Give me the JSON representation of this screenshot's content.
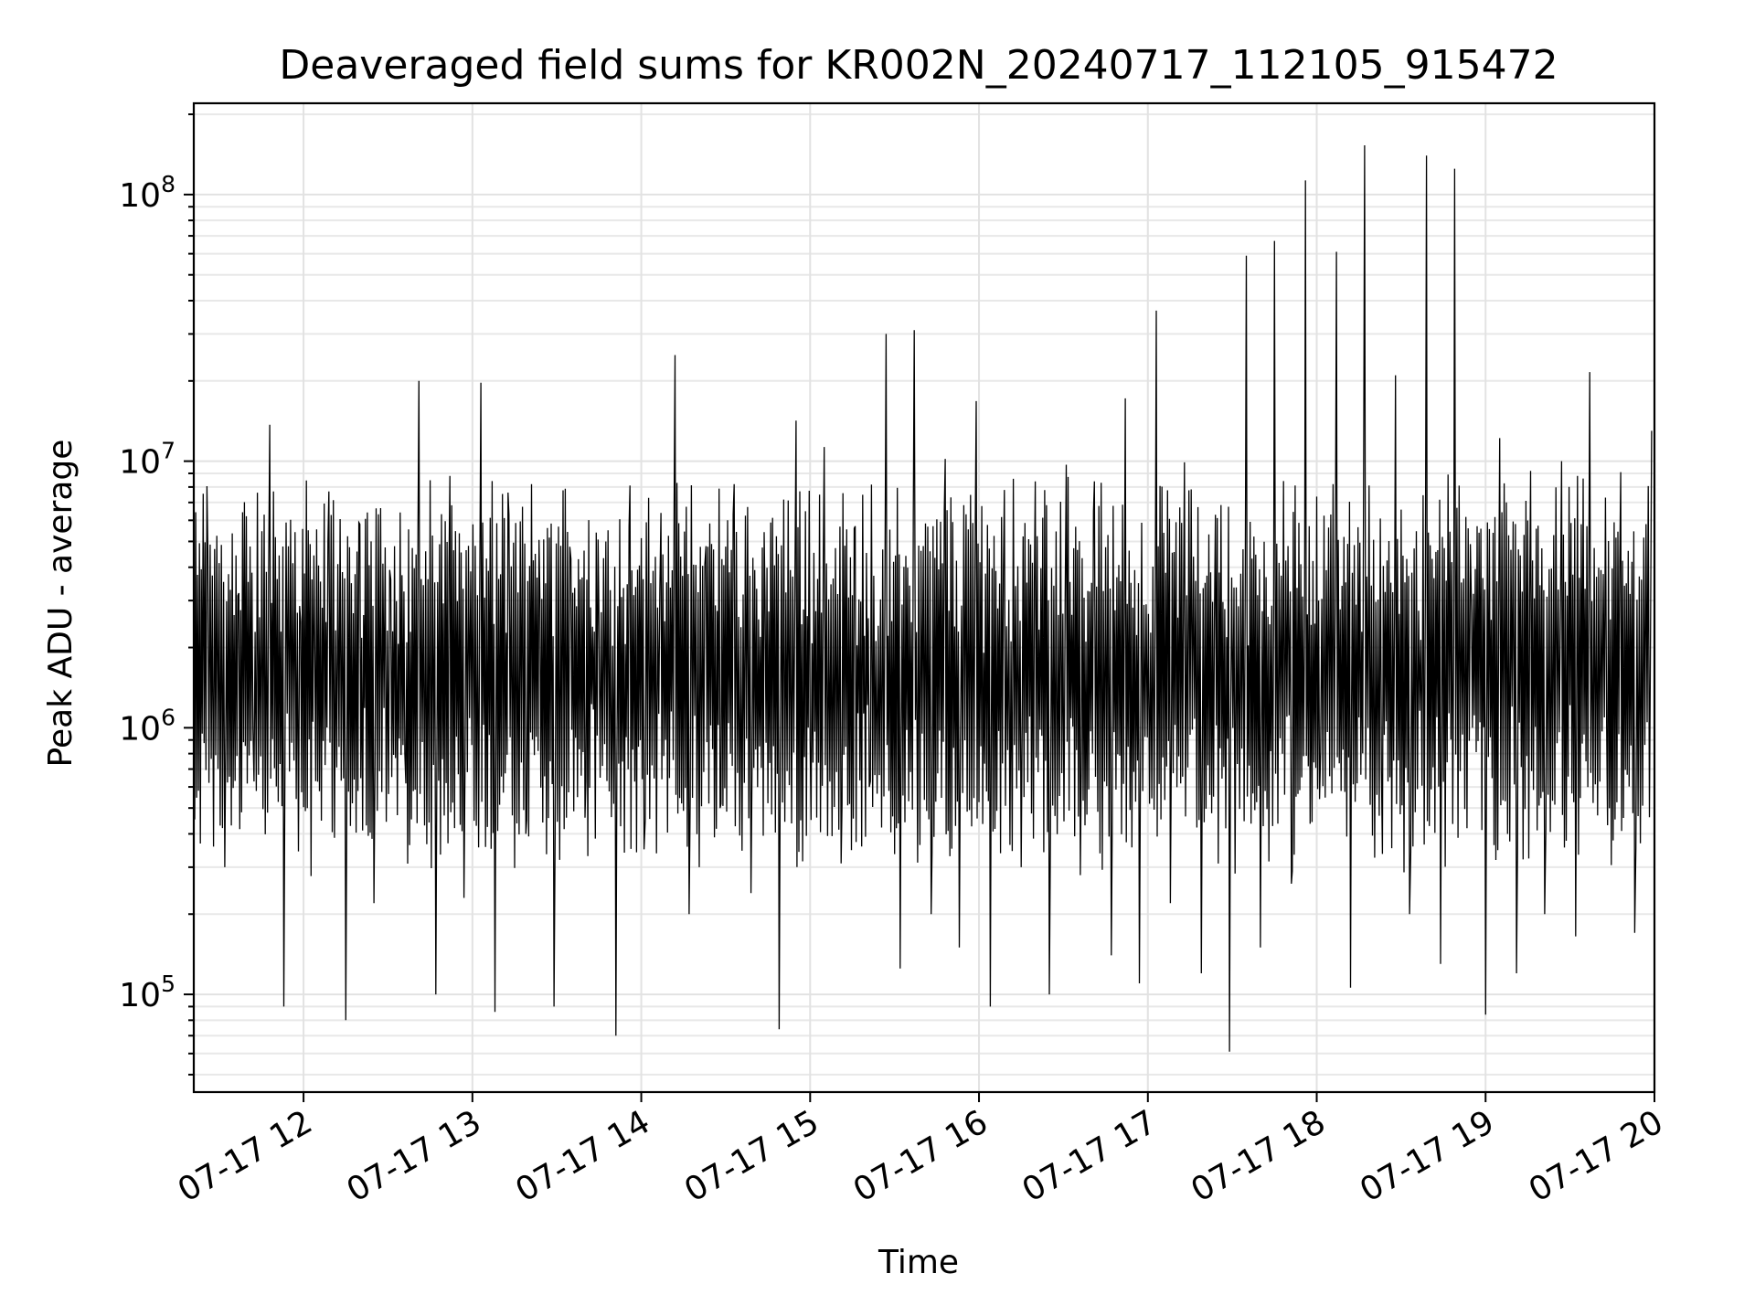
{
  "chart_data": {
    "type": "line",
    "title": "Deaveraged field sums for KR002N_20240717_112105_915472",
    "xlabel": "Time",
    "ylabel": "Peak ADU - average",
    "yscale": "log",
    "xlim": [
      "07-17 11:21",
      "07-17 20:00"
    ],
    "ylim": [
      43000,
      220000000
    ],
    "grid": "on (major and minor)",
    "x_ticks": [
      "07-17 12",
      "07-17 13",
      "07-17 14",
      "07-17 15",
      "07-17 16",
      "07-17 17",
      "07-17 18",
      "07-17 19",
      "07-17 20"
    ],
    "y_ticks": [
      {
        "value": 100000,
        "base": "10",
        "exponent": "5"
      },
      {
        "value": 1000000,
        "base": "10",
        "exponent": "6"
      },
      {
        "value": 10000000,
        "base": "10",
        "exponent": "7"
      },
      {
        "value": 100000000,
        "base": "10",
        "exponent": "8"
      }
    ],
    "series": [
      {
        "color": "#000000",
        "x": [
          "07-17 11:21",
          "07-17 11:26",
          "07-17 11:32",
          "07-17 11:37",
          "07-17 11:42",
          "07-17 11:48",
          "07-17 11:53",
          "07-17 11:59",
          "07-17 12:04",
          "07-17 12:09",
          "07-17 12:15",
          "07-17 12:20",
          "07-17 12:25",
          "07-17 12:31",
          "07-17 12:36",
          "07-17 12:41",
          "07-17 12:47",
          "07-17 12:52",
          "07-17 12:57",
          "07-17 13:03",
          "07-17 13:08",
          "07-17 13:13",
          "07-17 13:19",
          "07-17 13:24",
          "07-17 13:29",
          "07-17 13:35",
          "07-17 13:40",
          "07-17 13:45",
          "07-17 13:51",
          "07-17 13:56",
          "07-17 14:01",
          "07-17 14:07",
          "07-17 14:12",
          "07-17 14:17",
          "07-17 14:23",
          "07-17 14:28",
          "07-17 14:33",
          "07-17 14:39",
          "07-17 14:44",
          "07-17 14:49",
          "07-17 14:55",
          "07-17 15:00",
          "07-17 15:05",
          "07-17 15:11",
          "07-17 15:16",
          "07-17 15:21",
          "07-17 15:27",
          "07-17 15:32",
          "07-17 15:37",
          "07-17 15:43",
          "07-17 15:48",
          "07-17 15:53",
          "07-17 15:59",
          "07-17 16:04",
          "07-17 16:09",
          "07-17 16:15",
          "07-17 16:20",
          "07-17 16:25",
          "07-17 16:31",
          "07-17 16:36",
          "07-17 16:41",
          "07-17 16:47",
          "07-17 16:52",
          "07-17 16:57",
          "07-17 17:03",
          "07-17 17:08",
          "07-17 17:13",
          "07-17 17:19",
          "07-17 17:24",
          "07-17 17:29",
          "07-17 17:35",
          "07-17 17:40",
          "07-17 17:45",
          "07-17 17:51",
          "07-17 17:56",
          "07-17 18:01",
          "07-17 18:07",
          "07-17 18:12",
          "07-17 18:17",
          "07-17 18:23",
          "07-17 18:28",
          "07-17 18:33",
          "07-17 18:39",
          "07-17 18:44",
          "07-17 18:49",
          "07-17 18:55",
          "07-17 19:00",
          "07-17 19:05",
          "07-17 19:11",
          "07-17 19:16",
          "07-17 19:21",
          "07-17 19:27",
          "07-17 19:32",
          "07-17 19:37",
          "07-17 19:43",
          "07-17 19:48",
          "07-17 19:53",
          "07-17 19:59"
        ],
        "y": [
          1800000,
          4600000,
          300000,
          3200000,
          1000000,
          13700000,
          90000,
          2500000,
          1900000,
          7700000,
          80000,
          5800000,
          220000,
          3600000,
          800000,
          20000000,
          100000,
          8800000,
          230000,
          19700000,
          86000,
          6300000,
          400000,
          3000000,
          90000,
          4300000,
          460000,
          2400000,
          70000,
          8100000,
          350000,
          6400000,
          25000000,
          200000,
          4800000,
          500000,
          8200000,
          240000,
          3000000,
          74000,
          14200000,
          900000,
          11300000,
          310000,
          5700000,
          600000,
          30000000,
          125000,
          31000000,
          200000,
          10200000,
          150000,
          16800000,
          90000,
          7800000,
          300000,
          8400000,
          100000,
          9700000,
          280000,
          8400000,
          140000,
          17200000,
          110000,
          36700000,
          220000,
          9900000,
          120000,
          6300000,
          61000,
          59000000,
          150000,
          67000000,
          260000,
          113000000,
          540000,
          61000000,
          106000,
          153000000,
          700000,
          21000000,
          200000,
          140000000,
          130000,
          125000000,
          2700000,
          84000,
          12200000,
          120000,
          9200000,
          200000,
          10000000,
          165000,
          21600000,
          1000000,
          9100000,
          170000,
          13000000
        ]
      }
    ]
  }
}
